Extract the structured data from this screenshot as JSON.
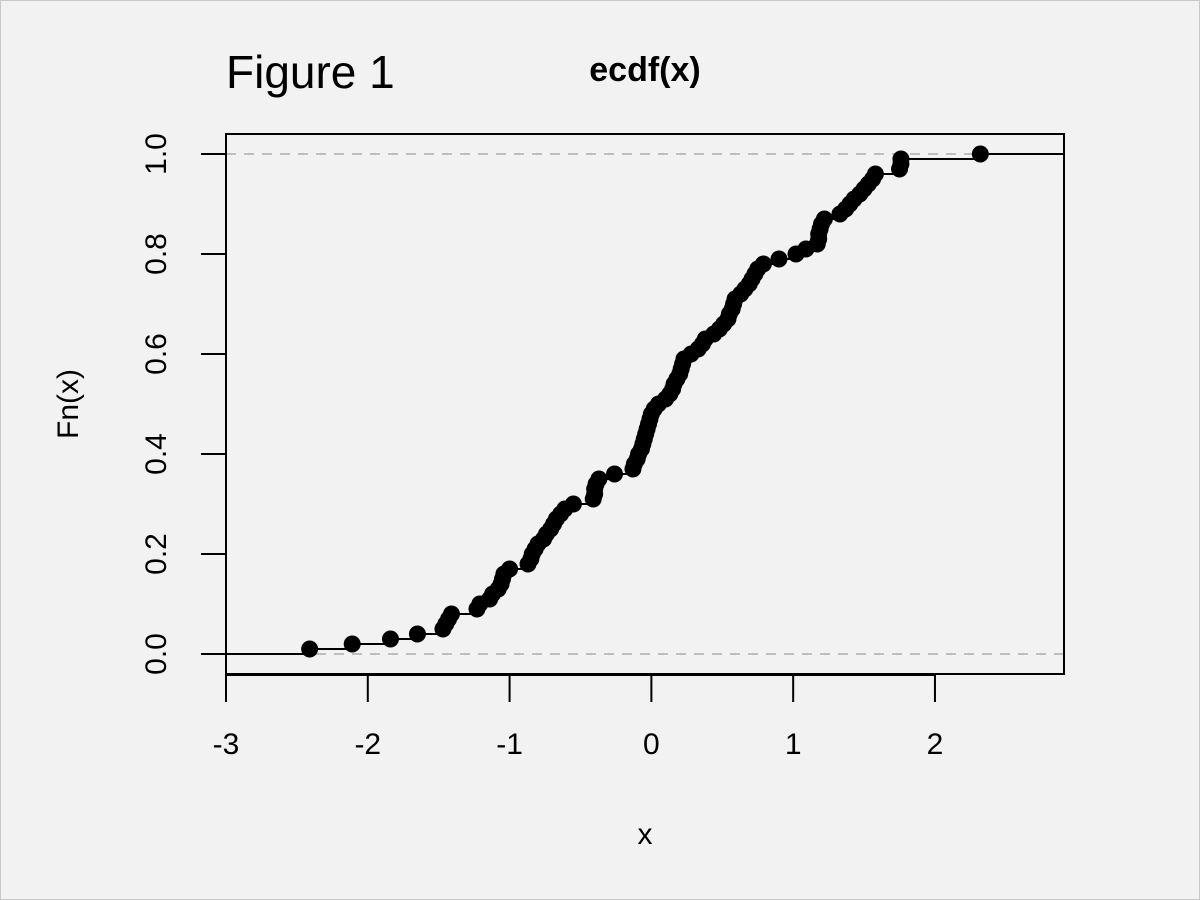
{
  "chart_data": {
    "type": "ecdf",
    "annotation": "Figure 1",
    "title": "ecdf(x)",
    "x_label": "x",
    "y_label": "Fn(x)",
    "color": "#000000",
    "x": [
      -2.41,
      -2.11,
      -1.84,
      -1.65,
      -1.47,
      -1.45,
      -1.43,
      -1.41,
      -1.23,
      -1.21,
      -1.14,
      -1.12,
      -1.08,
      -1.06,
      -1.05,
      -1.04,
      -1.0,
      -0.87,
      -0.85,
      -0.84,
      -0.82,
      -0.8,
      -0.76,
      -0.74,
      -0.71,
      -0.69,
      -0.67,
      -0.64,
      -0.61,
      -0.55,
      -0.41,
      -0.4,
      -0.4,
      -0.39,
      -0.37,
      -0.26,
      -0.13,
      -0.12,
      -0.1,
      -0.09,
      -0.07,
      -0.06,
      -0.05,
      -0.04,
      -0.03,
      -0.02,
      -0.01,
      0.0,
      0.02,
      0.05,
      0.1,
      0.13,
      0.15,
      0.16,
      0.18,
      0.2,
      0.21,
      0.22,
      0.23,
      0.28,
      0.33,
      0.36,
      0.38,
      0.44,
      0.48,
      0.51,
      0.54,
      0.55,
      0.57,
      0.58,
      0.59,
      0.63,
      0.66,
      0.69,
      0.71,
      0.73,
      0.75,
      0.79,
      0.9,
      1.02,
      1.09,
      1.17,
      1.18,
      1.18,
      1.19,
      1.2,
      1.22,
      1.33,
      1.37,
      1.4,
      1.43,
      1.47,
      1.5,
      1.53,
      1.56,
      1.58,
      1.75,
      1.76,
      1.76,
      2.32
    ],
    "values": [
      0.01,
      0.02,
      0.03,
      0.04,
      0.05,
      0.06,
      0.07,
      0.08,
      0.09,
      0.1,
      0.11,
      0.12,
      0.13,
      0.14,
      0.15,
      0.16,
      0.17,
      0.18,
      0.19,
      0.2,
      0.21,
      0.22,
      0.23,
      0.24,
      0.25,
      0.26,
      0.27,
      0.28,
      0.29,
      0.3,
      0.31,
      0.32,
      0.33,
      0.34,
      0.35,
      0.36,
      0.37,
      0.38,
      0.39,
      0.4,
      0.41,
      0.42,
      0.43,
      0.44,
      0.45,
      0.46,
      0.47,
      0.48,
      0.49,
      0.5,
      0.51,
      0.52,
      0.53,
      0.54,
      0.55,
      0.56,
      0.57,
      0.58,
      0.59,
      0.6,
      0.61,
      0.62,
      0.63,
      0.64,
      0.65,
      0.66,
      0.67,
      0.68,
      0.69,
      0.7,
      0.71,
      0.72,
      0.73,
      0.74,
      0.75,
      0.76,
      0.77,
      0.78,
      0.79,
      0.8,
      0.81,
      0.82,
      0.83,
      0.84,
      0.85,
      0.86,
      0.87,
      0.88,
      0.89,
      0.9,
      0.91,
      0.92,
      0.93,
      0.94,
      0.95,
      0.96,
      0.97,
      0.98,
      0.99,
      1.0
    ],
    "xlim": [
      -3,
      2.91
    ],
    "ylim": [
      -0.04,
      1.04
    ],
    "xticks": [
      -3,
      -2,
      -1,
      0,
      1,
      2
    ],
    "yticks": [
      {
        "value": 0,
        "label": "0.0"
      },
      {
        "value": 0.2,
        "label": "0.2"
      },
      {
        "value": 0.4,
        "label": "0.4"
      },
      {
        "value": 0.6,
        "label": "0.6"
      },
      {
        "value": 0.8,
        "label": "0.8"
      },
      {
        "value": 1,
        "label": "1.0"
      }
    ],
    "reference_lines": [
      0,
      1
    ]
  }
}
